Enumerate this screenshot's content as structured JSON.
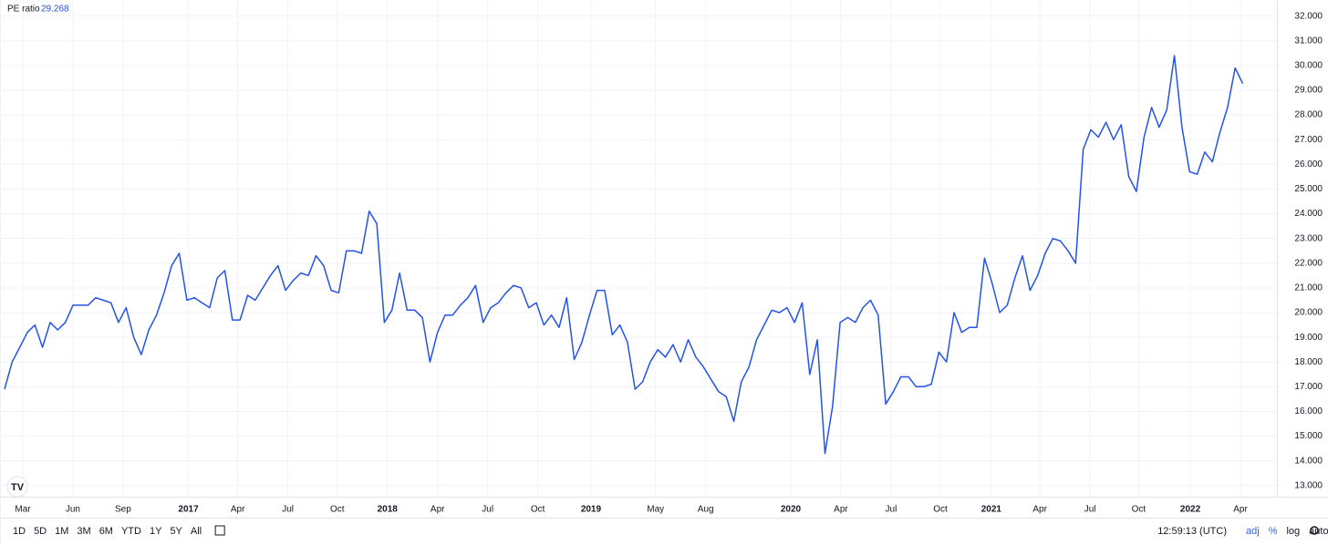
{
  "chart_data": {
    "type": "line",
    "series": [
      {
        "name": "PE ratio",
        "color": "#2453e8",
        "values": [
          16.9,
          18.0,
          18.6,
          19.2,
          19.5,
          18.6,
          19.6,
          19.3,
          19.6,
          20.3,
          20.3,
          20.3,
          20.6,
          20.5,
          20.4,
          19.6,
          20.2,
          19.0,
          18.3,
          19.3,
          19.9,
          20.8,
          21.9,
          22.4,
          20.5,
          20.6,
          20.4,
          20.2,
          21.4,
          21.7,
          19.7,
          19.7,
          20.7,
          20.5,
          21.0,
          21.5,
          21.9,
          20.9,
          21.3,
          21.6,
          21.5,
          22.3,
          21.9,
          20.9,
          20.8,
          22.5,
          22.5,
          22.4,
          24.1,
          23.6,
          19.6,
          20.1,
          21.6,
          20.1,
          20.1,
          19.8,
          18.0,
          19.2,
          19.9,
          19.9,
          20.3,
          20.6,
          21.1,
          19.6,
          20.2,
          20.4,
          20.8,
          21.1,
          21.0,
          20.2,
          20.4,
          19.5,
          19.9,
          19.4,
          20.6,
          18.1,
          18.8,
          19.9,
          20.9,
          20.9,
          19.1,
          19.5,
          18.8,
          16.9,
          17.2,
          18.0,
          18.5,
          18.2,
          18.7,
          18.0,
          18.9,
          18.2,
          17.8,
          17.3,
          16.8,
          16.6,
          15.6,
          17.2,
          17.8,
          18.9,
          19.5,
          20.1,
          20.0,
          20.2,
          19.6,
          20.4,
          17.5,
          18.9,
          14.3,
          16.2,
          19.6,
          19.8,
          19.6,
          20.2,
          20.5,
          19.9,
          16.3,
          16.8,
          17.4,
          17.4,
          17.0,
          17.0,
          17.1,
          18.4,
          18.0,
          20.0,
          19.2,
          19.4,
          19.4,
          22.2,
          21.2,
          20.0,
          20.3,
          21.4,
          22.3,
          20.9,
          21.5,
          22.4,
          23.0,
          22.9,
          22.5,
          22.0,
          26.6,
          27.4,
          27.1,
          27.7,
          27.0,
          27.6,
          25.5,
          24.9,
          27.1,
          28.3,
          27.5,
          28.2,
          30.4,
          27.5,
          25.7,
          25.6,
          26.5,
          26.1,
          27.3,
          28.3,
          29.9,
          29.268
        ]
      }
    ],
    "xlim": [
      -0.6,
      167.5
    ],
    "xticks": [
      {
        "value": 2.4,
        "label": "Mar"
      },
      {
        "value": 9.0,
        "label": "Jun"
      },
      {
        "value": 15.6,
        "label": "Sep"
      },
      {
        "value": 24.2,
        "label": "2017"
      },
      {
        "value": 30.7,
        "label": "Apr"
      },
      {
        "value": 37.3,
        "label": "Jul"
      },
      {
        "value": 43.8,
        "label": "Oct"
      },
      {
        "value": 50.4,
        "label": "2018"
      },
      {
        "value": 57.0,
        "label": "Apr"
      },
      {
        "value": 63.6,
        "label": "Jul"
      },
      {
        "value": 70.2,
        "label": "Oct"
      },
      {
        "value": 77.2,
        "label": "2019"
      },
      {
        "value": 85.7,
        "label": "May"
      },
      {
        "value": 92.3,
        "label": "Aug"
      },
      {
        "value": 103.5,
        "label": "2020"
      },
      {
        "value": 110.1,
        "label": "Apr"
      },
      {
        "value": 116.7,
        "label": "Jul"
      },
      {
        "value": 123.2,
        "label": "Oct"
      },
      {
        "value": 129.9,
        "label": "2021"
      },
      {
        "value": 136.3,
        "label": "Apr"
      },
      {
        "value": 142.9,
        "label": "Jul"
      },
      {
        "value": 149.3,
        "label": "Oct"
      },
      {
        "value": 156.1,
        "label": "2022"
      },
      {
        "value": 162.7,
        "label": "Apr"
      }
    ],
    "ylim": [
      12.55,
      32.65
    ],
    "yticks": [
      {
        "value": 13,
        "label": "13.000"
      },
      {
        "value": 14,
        "label": "14.000"
      },
      {
        "value": 15,
        "label": "15.000"
      },
      {
        "value": 16,
        "label": "16.000"
      },
      {
        "value": 17,
        "label": "17.000"
      },
      {
        "value": 18,
        "label": "18.000"
      },
      {
        "value": 19,
        "label": "19.000"
      },
      {
        "value": 20,
        "label": "20.000"
      },
      {
        "value": 21,
        "label": "21.000"
      },
      {
        "value": 22,
        "label": "22.000"
      },
      {
        "value": 23,
        "label": "23.000"
      },
      {
        "value": 24,
        "label": "24.000"
      },
      {
        "value": 25,
        "label": "25.000"
      },
      {
        "value": 26,
        "label": "26.000"
      },
      {
        "value": 27,
        "label": "27.000"
      },
      {
        "value": 28,
        "label": "28.000"
      },
      {
        "value": 29,
        "label": "29.000"
      },
      {
        "value": 30,
        "label": "30.000"
      },
      {
        "value": 31,
        "label": "31.000"
      },
      {
        "value": 32,
        "label": "32.000"
      }
    ],
    "grid": true
  },
  "toolbar": {
    "ranges": [
      "1D",
      "5D",
      "1M",
      "3M",
      "6M",
      "YTD",
      "1Y",
      "5Y",
      "All"
    ],
    "time": "12:59:13 (UTC)",
    "options": [
      "adj",
      "%",
      "log",
      "auto"
    ]
  }
}
